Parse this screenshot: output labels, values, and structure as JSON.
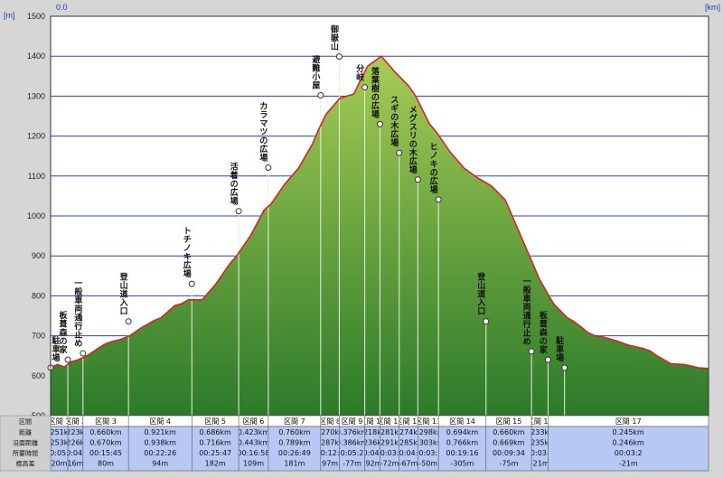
{
  "axis": {
    "y_unit": "[m]",
    "x_unit": "[km]",
    "x_start": "0.0"
  },
  "row_labels": [
    "区間",
    "距離",
    "沿面距離",
    "所要時間",
    "標高差"
  ],
  "chart_data": {
    "type": "area",
    "title": "",
    "xlabel": "",
    "ylabel": "",
    "ylim": [
      500,
      1500
    ],
    "yticks": [
      500,
      600,
      700,
      800,
      900,
      1000,
      1100,
      1200,
      1300,
      1400,
      1500
    ],
    "grid": true,
    "x_total_km": 9.55,
    "profile": {
      "x": [
        0,
        0.1,
        0.2,
        0.3,
        0.4,
        0.47,
        0.55,
        0.6,
        0.7,
        0.8,
        0.9,
        1.0,
        1.15,
        1.3,
        1.4,
        1.5,
        1.6,
        1.7,
        1.8,
        1.9,
        2.0,
        2.2,
        2.4,
        2.5,
        2.6,
        2.7,
        2.9,
        3.1,
        3.2,
        3.4,
        3.6,
        3.8,
        3.9,
        4.0,
        4.2,
        4.4,
        4.6,
        4.8,
        5.0,
        5.2,
        5.3,
        5.4,
        5.5,
        5.6,
        5.8,
        6.0,
        6.2,
        6.4,
        6.6,
        6.8,
        6.9,
        7.0,
        7.1,
        7.3,
        7.5,
        7.6,
        7.7,
        7.8,
        7.9,
        8.0,
        8.2,
        8.4,
        8.6,
        8.7,
        8.8,
        8.9,
        9.0,
        9.2,
        9.4,
        9.55
      ],
      "y": [
        620,
        628,
        622,
        635,
        640,
        645,
        652,
        658,
        670,
        680,
        686,
        690,
        700,
        718,
        728,
        738,
        745,
        760,
        775,
        780,
        790,
        790,
        830,
        855,
        880,
        900,
        950,
        1015,
        1030,
        1080,
        1120,
        1180,
        1220,
        1255,
        1295,
        1305,
        1375,
        1400,
        1360,
        1325,
        1300,
        1265,
        1230,
        1210,
        1160,
        1120,
        1095,
        1075,
        1040,
        960,
        920,
        880,
        840,
        780,
        745,
        735,
        722,
        708,
        700,
        698,
        688,
        676,
        668,
        662,
        650,
        640,
        630,
        628,
        620,
        618
      ]
    },
    "waypoints": [
      {
        "name": "駐車場",
        "x": 0.0,
        "y": 620
      },
      {
        "name": "板葺森の家",
        "x": 0.25,
        "y": 640
      },
      {
        "name": "一般車両通行止め",
        "x": 0.47,
        "y": 656
      },
      {
        "name": "登山道入口",
        "x": 1.13,
        "y": 736
      },
      {
        "name": "トチノキ広場",
        "x": 2.05,
        "y": 830
      },
      {
        "name": "活着の広場",
        "x": 2.73,
        "y": 1012
      },
      {
        "name": "カラマツの広場",
        "x": 3.16,
        "y": 1121
      },
      {
        "name": "避難小屋",
        "x": 3.92,
        "y": 1302
      },
      {
        "name": "御嶽山",
        "x": 4.19,
        "y": 1399
      },
      {
        "name": "分岐",
        "x": 4.56,
        "y": 1322
      },
      {
        "name": "落葉樹の広場",
        "x": 4.78,
        "y": 1230
      },
      {
        "name": "スギの木広場",
        "x": 5.06,
        "y": 1158
      },
      {
        "name": "メグスリの木広場",
        "x": 5.33,
        "y": 1091
      },
      {
        "name": "ヒノキの広場",
        "x": 5.63,
        "y": 1041
      },
      {
        "name": "登山道入口",
        "x": 6.32,
        "y": 736
      },
      {
        "name": "一般車両通行止め",
        "x": 6.98,
        "y": 661
      },
      {
        "name": "板葺森の家",
        "x": 7.22,
        "y": 640
      },
      {
        "name": "駐車場",
        "x": 7.46,
        "y": 620
      }
    ],
    "segments": [
      {
        "label": "区間 1",
        "dist": "0.251km",
        "surface": "0.253km",
        "time": "00:05:0",
        "diff": "20m"
      },
      {
        "label": "区間 2",
        "dist": "0.223km",
        "surface": "0.226km",
        "time": "00:04:4",
        "diff": "16m"
      },
      {
        "label": "区間 3",
        "dist": "0.660km",
        "surface": "0.670km",
        "time": "00:15:45",
        "diff": "80m"
      },
      {
        "label": "区間 4",
        "dist": "0.921km",
        "surface": "0.938km",
        "time": "00:22:26",
        "diff": "94m"
      },
      {
        "label": "区間 5",
        "dist": "0.686km",
        "surface": "0.716km",
        "time": "00:25:47",
        "diff": "182m"
      },
      {
        "label": "区間 6",
        "dist": "0.423km",
        "surface": "0.443km",
        "time": "00:16:58",
        "diff": "109m"
      },
      {
        "label": "区間 7",
        "dist": "0.760km",
        "surface": "0.789km",
        "time": "00:26:49",
        "diff": "181m"
      },
      {
        "label": "区間 8",
        "dist": "0.270km",
        "surface": "0.287km",
        "time": "00:12:3",
        "diff": "97m"
      },
      {
        "label": "区間 9",
        "dist": "0.376km",
        "surface": "0.386km",
        "time": "00:05:21",
        "diff": "-77m"
      },
      {
        "label": "区間 10",
        "dist": "0.218km",
        "surface": "0.236km",
        "time": "00:04:0",
        "diff": "-92m"
      },
      {
        "label": "区間 11",
        "dist": "0.281km",
        "surface": "0.291km",
        "time": "00:03:4",
        "diff": "-72m"
      },
      {
        "label": "区間 12",
        "dist": "0.274km",
        "surface": "0.285km",
        "time": "00:04:2",
        "diff": "-67m"
      },
      {
        "label": "区間 13",
        "dist": "0.298km",
        "surface": "0.303km",
        "time": "00:03:5",
        "diff": "-50m"
      },
      {
        "label": "区間 14",
        "dist": "0.694km",
        "surface": "0.766km",
        "time": "00:19:16",
        "diff": "-305m"
      },
      {
        "label": "区間 15",
        "dist": "0.660km",
        "surface": "0.669km",
        "time": "00:09:34",
        "diff": "-75m"
      },
      {
        "label": "区間 16",
        "dist": "0.233km",
        "surface": "0.235km",
        "time": "00:03:3",
        "diff": "-21m"
      },
      {
        "label": "区間 17",
        "dist": "0.245km",
        "surface": "0.246km",
        "time": "00:03:2",
        "diff": "-21m"
      }
    ]
  },
  "colors": {
    "plot_bg": "#ffffff",
    "grid": "#2f3fd0",
    "profile_line": "#e02020",
    "fill_top": "#a6cc55",
    "fill_bottom": "#2c7a2a",
    "table_bg": "#b8c8f4",
    "header_bg": "#ffffff"
  }
}
